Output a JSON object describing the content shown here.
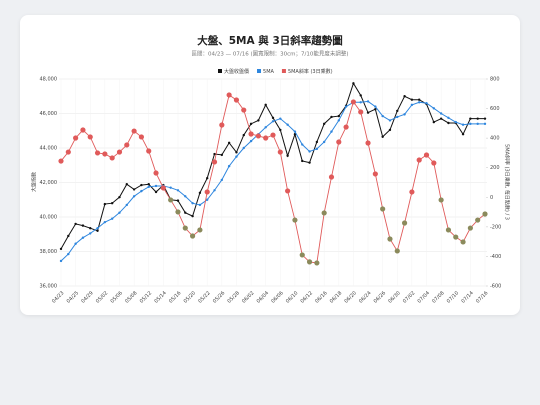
{
  "chart_data": {
    "type": "line",
    "title": "大盤、5MA 與 3日斜率趨勢圖",
    "subtitle": "區間：04/23 — 07/16 (圖寬限制：30cm；7/10能見度未調整)",
    "y_label": "大盤指數",
    "y2_label": "5MA斜率 (3日乘數, 每日點數) / 3",
    "categories": [
      "04/23",
      null,
      "04/25",
      null,
      "04/29",
      null,
      "05/02",
      null,
      "05/06",
      null,
      "05/08",
      null,
      "05/12",
      null,
      "05/14",
      null,
      "05/16",
      null,
      "05/20",
      null,
      "05/22",
      null,
      "05/26",
      null,
      "05/28",
      null,
      "06/02",
      null,
      "06/04",
      null,
      "06/06",
      null,
      "06/10",
      null,
      "06/12",
      null,
      "06/16",
      null,
      "06/18",
      null,
      "06/20",
      null,
      "06/24",
      null,
      "06/26",
      null,
      "06/30",
      null,
      "07/02",
      null,
      "07/04",
      null,
      "07/08",
      null,
      "07/10",
      null,
      "07/14",
      null,
      "07/16"
    ],
    "series": [
      {
        "name": "大盤收盤價",
        "color": "#111111",
        "axis": "y",
        "values": [
          38150,
          38900,
          39600,
          39500,
          39350,
          39200,
          40750,
          40800,
          41150,
          41900,
          41600,
          41850,
          41900,
          41450,
          41850,
          41000,
          40950,
          40250,
          40050,
          41400,
          42250,
          43650,
          43600,
          44300,
          43750,
          44750,
          45400,
          45600,
          46500,
          45750,
          45050,
          43550,
          44800,
          43250,
          43150,
          44350,
          45400,
          45800,
          45850,
          46450,
          47750,
          47050,
          46050,
          46250,
          44650,
          45050,
          46150,
          47000,
          46800,
          46800,
          46550,
          45500,
          45700,
          45450,
          45450,
          44800,
          45700,
          45700,
          45700
        ]
      },
      {
        "name": "5MA",
        "color": "#2e86de",
        "axis": "y",
        "values": [
          37450,
          37850,
          38450,
          38800,
          39050,
          39350,
          39700,
          39900,
          40250,
          40700,
          41200,
          41500,
          41750,
          41800,
          41800,
          41700,
          41550,
          41200,
          40800,
          40700,
          41000,
          41550,
          42150,
          42950,
          43500,
          44000,
          44400,
          44800,
          45200,
          45550,
          45700,
          45350,
          44950,
          44200,
          43800,
          43950,
          44350,
          44950,
          45600,
          46400,
          46650,
          46650,
          46700,
          46400,
          45850,
          45600,
          45800,
          45950,
          46500,
          46650,
          46600,
          46300,
          46000,
          45750,
          45500,
          45350,
          45400,
          45400,
          45400
        ]
      },
      {
        "name": "5MA斜率 (3日乘數)",
        "color": "#e05a5a",
        "negative_color": "#8b8a5c",
        "axis": "y2",
        "values": [
          245,
          306,
          401,
          455,
          408,
          300,
          293,
          266,
          306,
          354,
          448,
          408,
          313,
          164,
          63,
          -18,
          -99,
          -208,
          -262,
          -221,
          36,
          239,
          489,
          692,
          658,
          590,
          428,
          415,
          401,
          421,
          306,
          43,
          -154,
          -390,
          -437,
          -444,
          -106,
          137,
          374,
          475,
          645,
          577,
          367,
          158,
          -79,
          -282,
          -363,
          -174,
          36,
          252,
          286,
          232,
          -18,
          -221,
          -269,
          -302,
          -208,
          -154,
          -113
        ]
      }
    ],
    "ylim": [
      36000,
      48000
    ],
    "yticks": [
      {
        "value": 36000,
        "label": "36,000"
      },
      {
        "value": 38000,
        "label": "38,000"
      },
      {
        "value": 40000,
        "label": "40,000"
      },
      {
        "value": 42000,
        "label": "42,000"
      },
      {
        "value": 44000,
        "label": "44,000"
      },
      {
        "value": 46000,
        "label": "46,000"
      },
      {
        "value": 48000,
        "label": "48,000"
      }
    ],
    "y2lim": [
      -600,
      800
    ],
    "y2ticks": [
      -600,
      -400,
      -200,
      0,
      200,
      400,
      600,
      800
    ],
    "grid": true,
    "legend": "top"
  }
}
